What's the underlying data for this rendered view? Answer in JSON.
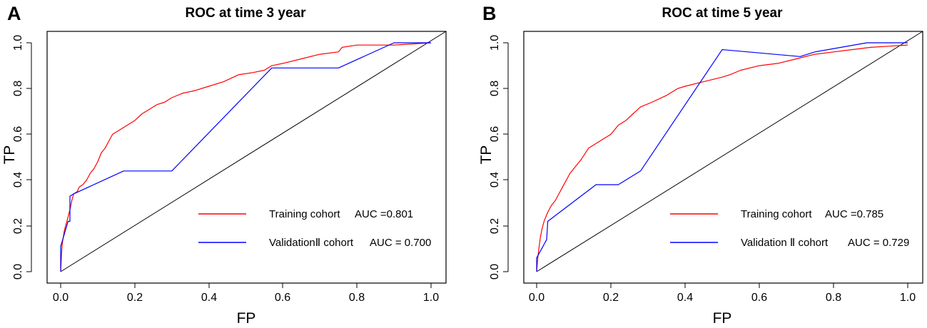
{
  "chart_data": [
    {
      "type": "line",
      "panel_label": "A",
      "title": "ROC at time 3 year",
      "xlabel": "FP",
      "ylabel": "TP",
      "xlim": [
        0,
        1
      ],
      "ylim": [
        0,
        1
      ],
      "x_ticks": [
        "0.0",
        "0.2",
        "0.4",
        "0.6",
        "0.8",
        "1.0"
      ],
      "y_ticks": [
        "0.0",
        "0.2",
        "0.4",
        "0.6",
        "0.8",
        "1.0"
      ],
      "reference_line": "diagonal",
      "legend_position": "bottom-right",
      "series": [
        {
          "name": "Training cohort",
          "auc_label": "AUC =0.801",
          "color": "#ff0000",
          "x": [
            0,
            0.003,
            0.005,
            0.01,
            0.015,
            0.02,
            0.025,
            0.03,
            0.035,
            0.045,
            0.05,
            0.06,
            0.07,
            0.08,
            0.09,
            0.1,
            0.11,
            0.12,
            0.13,
            0.14,
            0.15,
            0.17,
            0.2,
            0.22,
            0.24,
            0.26,
            0.28,
            0.3,
            0.33,
            0.36,
            0.4,
            0.44,
            0.48,
            0.52,
            0.55,
            0.57,
            0.6,
            0.65,
            0.7,
            0.75,
            0.76,
            0.8,
            0.85,
            0.9,
            0.95,
            1.0
          ],
          "y": [
            0.0,
            0.1,
            0.13,
            0.18,
            0.21,
            0.24,
            0.27,
            0.31,
            0.34,
            0.35,
            0.37,
            0.38,
            0.4,
            0.43,
            0.45,
            0.48,
            0.52,
            0.54,
            0.57,
            0.6,
            0.61,
            0.63,
            0.66,
            0.69,
            0.71,
            0.73,
            0.74,
            0.76,
            0.78,
            0.79,
            0.81,
            0.83,
            0.86,
            0.87,
            0.88,
            0.9,
            0.91,
            0.93,
            0.95,
            0.96,
            0.98,
            0.99,
            0.99,
            0.99,
            0.995,
            1.0
          ]
        },
        {
          "name": "ValidationⅡ cohort",
          "auc_label": "AUC = 0.700",
          "color": "#0000ff",
          "x": [
            0,
            0.0,
            0.02,
            0.025,
            0.025,
            0.035,
            0.17,
            0.3,
            0.57,
            0.75,
            0.9,
            0.95,
            1.0
          ],
          "y": [
            0,
            0.11,
            0.22,
            0.22,
            0.33,
            0.34,
            0.44,
            0.44,
            0.89,
            0.89,
            1.0,
            1.0,
            1.0
          ]
        }
      ]
    },
    {
      "type": "line",
      "panel_label": "B",
      "title": "ROC at time 5 year",
      "xlabel": "FP",
      "ylabel": "TP",
      "xlim": [
        0,
        1
      ],
      "ylim": [
        0,
        1
      ],
      "x_ticks": [
        "0.0",
        "0.2",
        "0.4",
        "0.6",
        "0.8",
        "1.0"
      ],
      "y_ticks": [
        "0.0",
        "0.2",
        "0.4",
        "0.6",
        "0.8",
        "1.0"
      ],
      "reference_line": "diagonal",
      "legend_position": "bottom-right",
      "series": [
        {
          "name": "Training cohort",
          "auc_label": "AUC =0.785",
          "color": "#ff0000",
          "x": [
            0,
            0.003,
            0.006,
            0.01,
            0.015,
            0.02,
            0.03,
            0.04,
            0.05,
            0.06,
            0.07,
            0.08,
            0.09,
            0.1,
            0.12,
            0.14,
            0.16,
            0.18,
            0.2,
            0.22,
            0.24,
            0.26,
            0.28,
            0.31,
            0.35,
            0.38,
            0.4,
            0.45,
            0.5,
            0.52,
            0.55,
            0.6,
            0.65,
            0.7,
            0.75,
            0.8,
            0.85,
            0.9,
            0.95,
            1.0
          ],
          "y": [
            0.0,
            0.06,
            0.1,
            0.15,
            0.19,
            0.22,
            0.26,
            0.29,
            0.31,
            0.34,
            0.37,
            0.4,
            0.43,
            0.45,
            0.49,
            0.54,
            0.56,
            0.58,
            0.6,
            0.64,
            0.66,
            0.69,
            0.72,
            0.74,
            0.77,
            0.8,
            0.81,
            0.83,
            0.85,
            0.86,
            0.88,
            0.9,
            0.91,
            0.93,
            0.95,
            0.96,
            0.97,
            0.98,
            0.985,
            0.99
          ]
        },
        {
          "name": "Validation Ⅱ cohort",
          "auc_label": "AUC = 0.729",
          "color": "#0000ff",
          "x": [
            0,
            0.0,
            0.027,
            0.03,
            0.16,
            0.22,
            0.28,
            0.5,
            0.71,
            0.75,
            0.89,
            1.0
          ],
          "y": [
            0,
            0.06,
            0.14,
            0.22,
            0.38,
            0.38,
            0.44,
            0.97,
            0.94,
            0.96,
            1.0,
            1.0
          ]
        }
      ]
    }
  ]
}
